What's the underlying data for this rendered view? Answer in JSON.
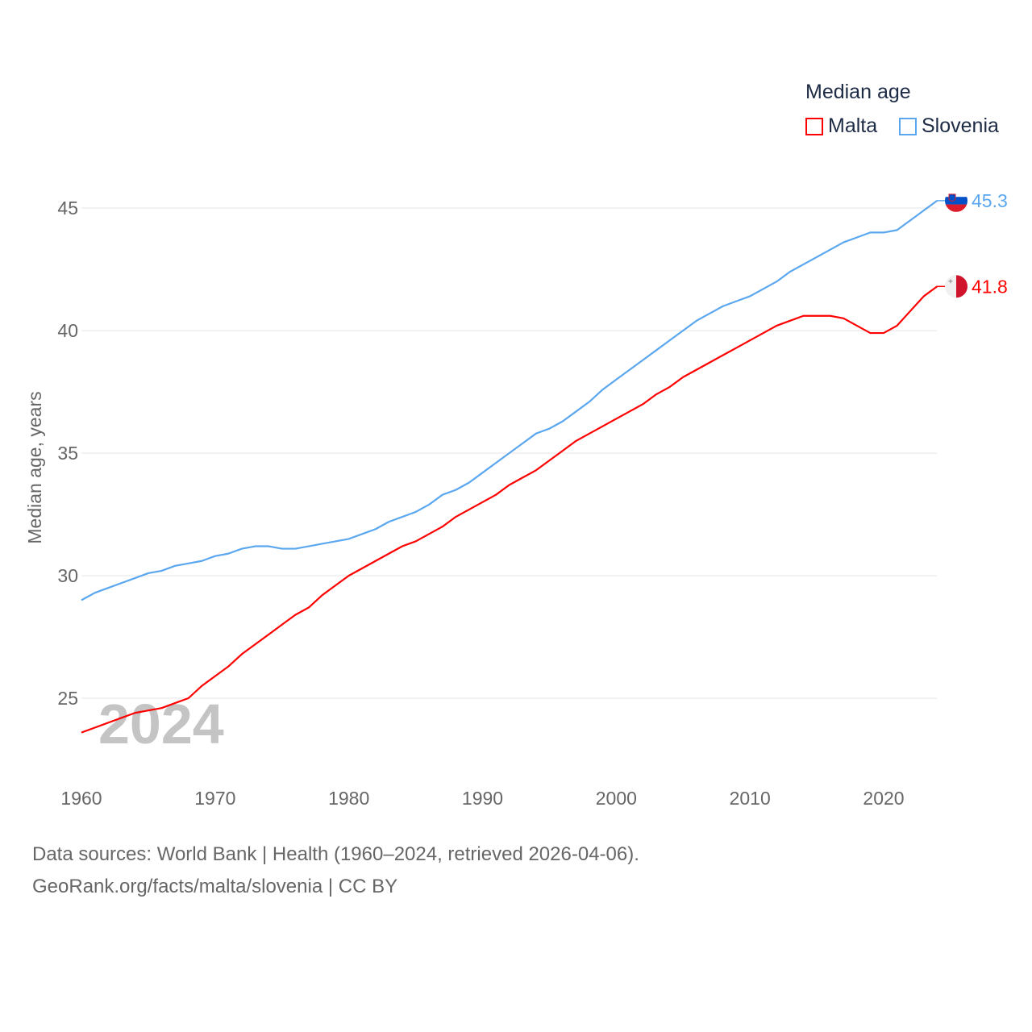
{
  "chart_data": {
    "type": "line",
    "title": "Median age",
    "ylabel": "Median age, years",
    "xlabel": "",
    "xlim": [
      1960,
      2024
    ],
    "ylim": [
      22.8,
      46.5
    ],
    "xticks": [
      1960,
      1970,
      1980,
      1990,
      2000,
      2010,
      2020
    ],
    "yticks": [
      25,
      30,
      35,
      40,
      45
    ],
    "grid": true,
    "legend_position": "top-right",
    "year_label": "2024",
    "x": [
      1960,
      1961,
      1962,
      1963,
      1964,
      1965,
      1966,
      1967,
      1968,
      1969,
      1970,
      1971,
      1972,
      1973,
      1974,
      1975,
      1976,
      1977,
      1978,
      1979,
      1980,
      1981,
      1982,
      1983,
      1984,
      1985,
      1986,
      1987,
      1988,
      1989,
      1990,
      1991,
      1992,
      1993,
      1994,
      1995,
      1996,
      1997,
      1998,
      1999,
      2000,
      2001,
      2002,
      2003,
      2004,
      2005,
      2006,
      2007,
      2008,
      2009,
      2010,
      2011,
      2012,
      2013,
      2014,
      2015,
      2016,
      2017,
      2018,
      2019,
      2020,
      2021,
      2022,
      2023,
      2024
    ],
    "series": [
      {
        "name": "Malta",
        "color": "#ff0000",
        "end_label": "41.8",
        "values": [
          23.6,
          23.8,
          24.0,
          24.2,
          24.4,
          24.5,
          24.6,
          24.8,
          25.0,
          25.5,
          25.9,
          26.3,
          26.8,
          27.2,
          27.6,
          28.0,
          28.4,
          28.7,
          29.2,
          29.6,
          30.0,
          30.3,
          30.6,
          30.9,
          31.2,
          31.4,
          31.7,
          32.0,
          32.4,
          32.7,
          33.0,
          33.3,
          33.7,
          34.0,
          34.3,
          34.7,
          35.1,
          35.5,
          35.8,
          36.1,
          36.4,
          36.7,
          37.0,
          37.4,
          37.7,
          38.1,
          38.4,
          38.7,
          39.0,
          39.3,
          39.6,
          39.9,
          40.2,
          40.4,
          40.6,
          40.6,
          40.6,
          40.5,
          40.2,
          39.9,
          39.9,
          40.2,
          40.8,
          41.4,
          41.8
        ]
      },
      {
        "name": "Slovenia",
        "color": "#5ba7ef",
        "end_label": "45.3",
        "values": [
          29.0,
          29.3,
          29.5,
          29.7,
          29.9,
          30.1,
          30.2,
          30.4,
          30.5,
          30.6,
          30.8,
          30.9,
          31.1,
          31.2,
          31.2,
          31.1,
          31.1,
          31.2,
          31.3,
          31.4,
          31.5,
          31.7,
          31.9,
          32.2,
          32.4,
          32.6,
          32.9,
          33.3,
          33.5,
          33.8,
          34.2,
          34.6,
          35.0,
          35.4,
          35.8,
          36.0,
          36.3,
          36.7,
          37.1,
          37.6,
          38.0,
          38.4,
          38.8,
          39.2,
          39.6,
          40.0,
          40.4,
          40.7,
          41.0,
          41.2,
          41.4,
          41.7,
          42.0,
          42.4,
          42.7,
          43.0,
          43.3,
          43.6,
          43.8,
          44.0,
          44.0,
          44.1,
          44.5,
          44.9,
          45.3
        ]
      }
    ]
  },
  "legend": {
    "title": "Median age",
    "items": [
      "Malta",
      "Slovenia"
    ]
  },
  "footer": {
    "line1": "Data sources: World Bank | Health (1960–2024, retrieved 2026-04-06).",
    "line2": "GeoRank.org/facts/malta/slovenia | CC BY"
  }
}
